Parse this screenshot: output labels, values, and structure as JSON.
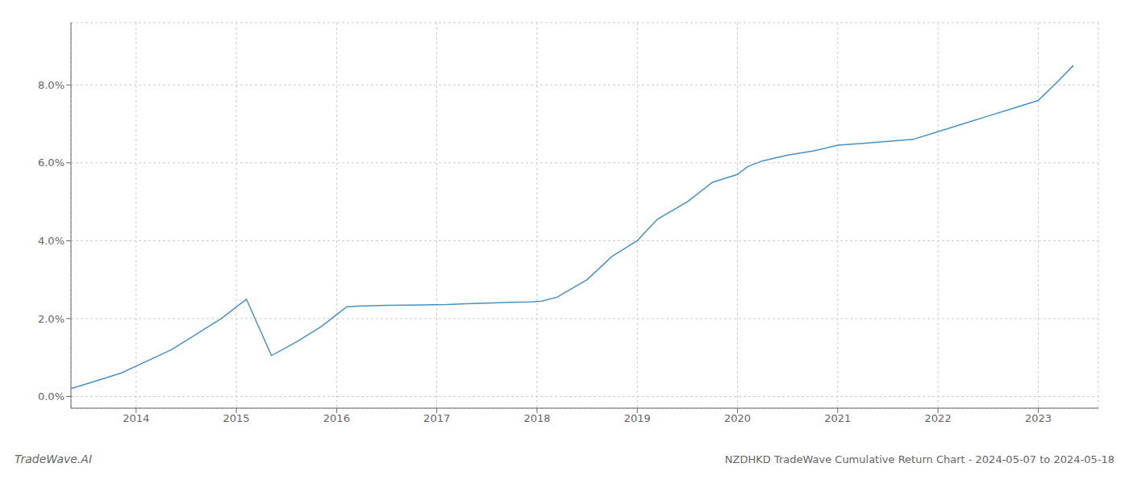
{
  "chart_data": {
    "type": "line",
    "title": "NZDHKD TradeWave Cumulative Return Chart - 2024-05-07 to 2024-05-18",
    "annotations": [
      "TradeWave.AI"
    ],
    "x": [
      2013.35,
      2013.6,
      2013.85,
      2014.1,
      2014.35,
      2014.6,
      2014.85,
      2015.1,
      2015.35,
      2015.6,
      2015.85,
      2016.0,
      2016.1,
      2016.2,
      2016.5,
      2016.85,
      2017.1,
      2017.3,
      2017.5,
      2017.75,
      2017.95,
      2018.05,
      2018.2,
      2018.5,
      2018.75,
      2019.0,
      2019.2,
      2019.5,
      2019.75,
      2020.0,
      2020.1,
      2020.25,
      2020.5,
      2020.75,
      2021.0,
      2021.25,
      2021.5,
      2021.75,
      2022.0,
      2022.25,
      2022.5,
      2022.75,
      2023.0,
      2023.2,
      2023.35
    ],
    "values": [
      0.002,
      0.004,
      0.006,
      0.009,
      0.012,
      0.016,
      0.02,
      0.025,
      0.0105,
      0.014,
      0.018,
      0.021,
      0.023,
      0.0232,
      0.0234,
      0.0235,
      0.0236,
      0.0238,
      0.024,
      0.0242,
      0.0243,
      0.0245,
      0.0255,
      0.03,
      0.036,
      0.04,
      0.0455,
      0.05,
      0.055,
      0.057,
      0.059,
      0.0605,
      0.062,
      0.063,
      0.0645,
      0.065,
      0.0655,
      0.066,
      0.068,
      0.07,
      0.072,
      0.074,
      0.076,
      0.081,
      0.085
    ],
    "color": "#4a90c4",
    "xlim": [
      2013.35,
      2023.6
    ],
    "ylim": [
      -0.003,
      0.096
    ],
    "xticks": [
      2014,
      2015,
      2016,
      2017,
      2018,
      2019,
      2020,
      2021,
      2022,
      2023
    ],
    "yticks": [
      {
        "value": 0.0,
        "label": "0.0%"
      },
      {
        "value": 0.02,
        "label": "2.0%"
      },
      {
        "value": 0.04,
        "label": "4.0%"
      },
      {
        "value": 0.06,
        "label": "6.0%"
      },
      {
        "value": 0.08,
        "label": "8.0%"
      }
    ],
    "grid": true
  }
}
